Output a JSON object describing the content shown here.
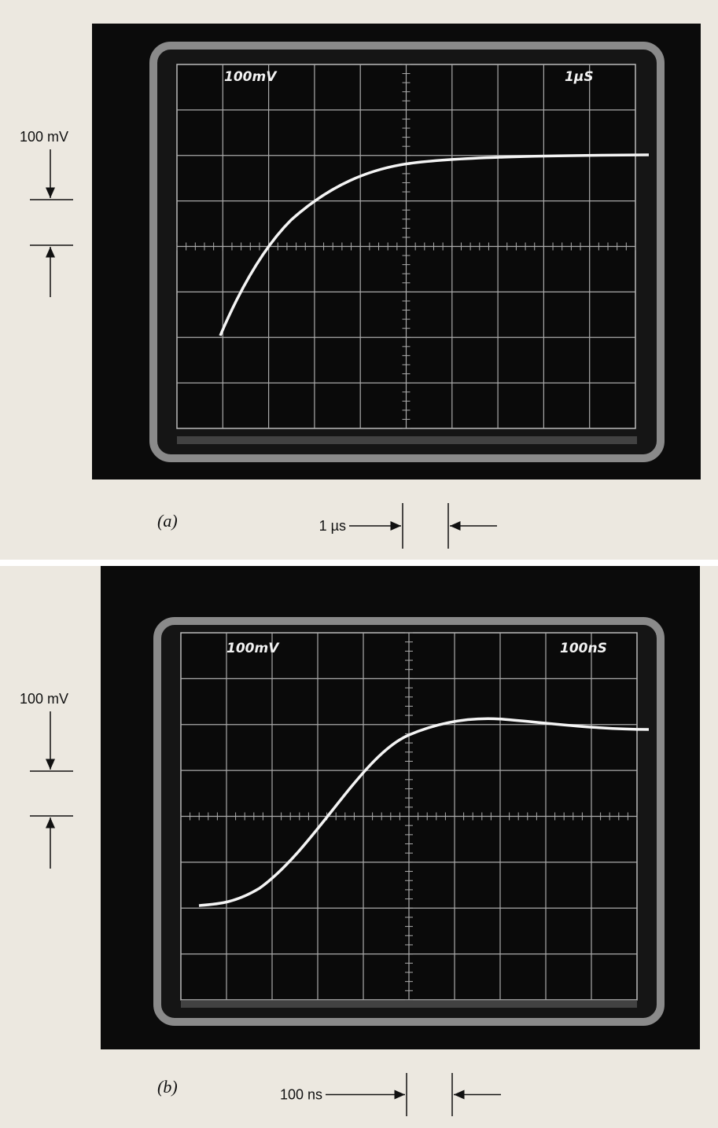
{
  "figures": [
    {
      "caption": "(a)",
      "screen_labels": [
        "100mV",
        "1µS"
      ],
      "vertical_scale": "100 mV",
      "horizontal_scale": "1 µs"
    },
    {
      "caption": "(b)",
      "screen_labels": [
        "100mV",
        "100nS"
      ],
      "vertical_scale": "100 mV",
      "horizontal_scale": "100 ns"
    }
  ]
}
